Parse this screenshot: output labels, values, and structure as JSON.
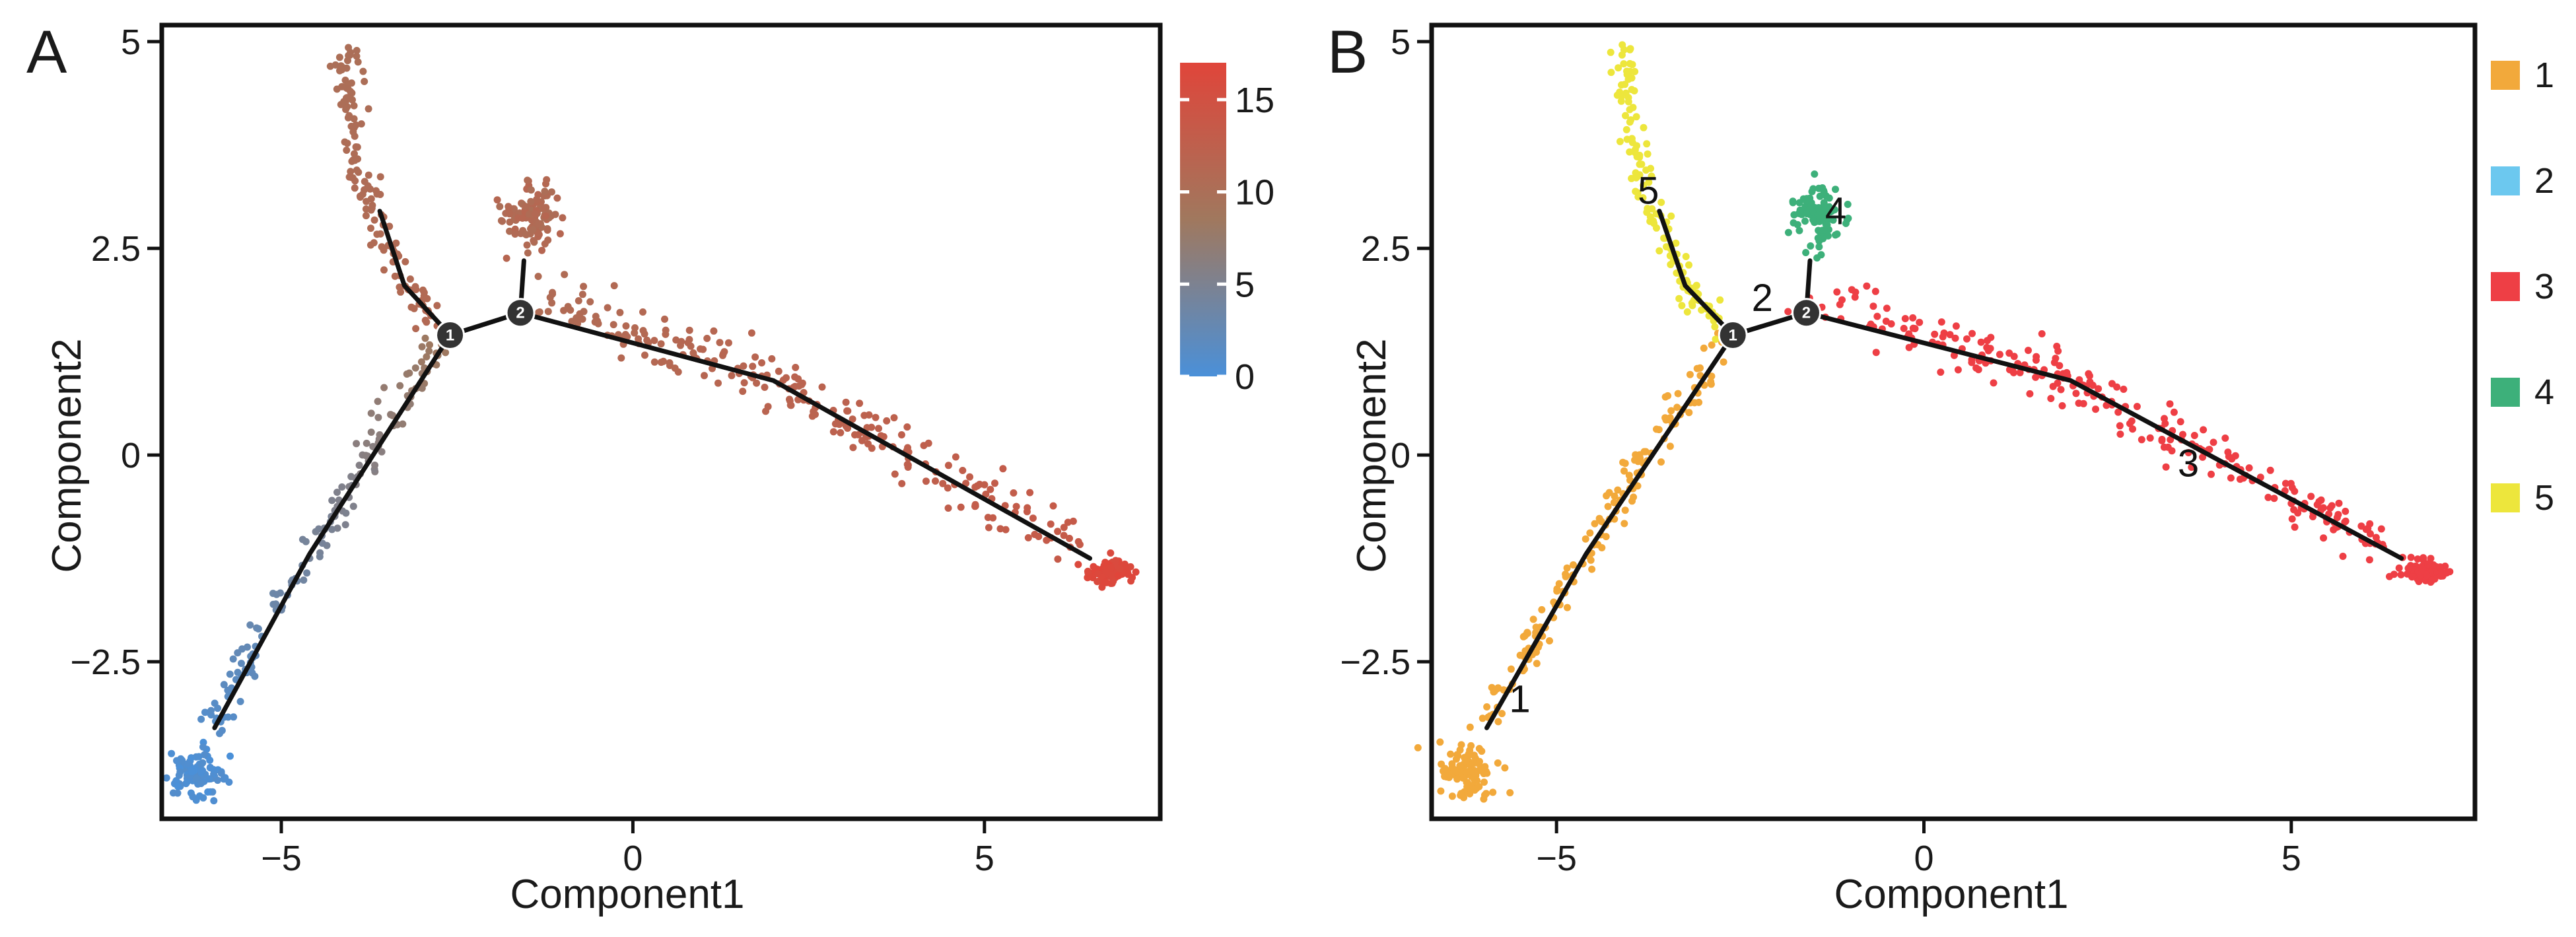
{
  "chart_data": [
    {
      "panel_label": "A",
      "type": "scatter",
      "color_mode": "pseudotime",
      "xlabel": "Component1",
      "ylabel": "Component2",
      "xlim": [
        -6.7,
        7.5
      ],
      "ylim": [
        -4.4,
        5.2
      ],
      "xticks": [
        -5,
        0,
        5
      ],
      "xtick_labels": [
        "−5",
        "0",
        "5"
      ],
      "yticks": [
        -2.5,
        0,
        2.5,
        5
      ],
      "ytick_labels": [
        "−2.5",
        "0",
        "2.5",
        "5"
      ],
      "colorbar": {
        "range": [
          0,
          17
        ],
        "ticks": [
          0,
          5,
          10,
          15
        ],
        "tick_labels": [
          "0",
          "5",
          "10",
          "15"
        ],
        "colors": [
          "#4A90D9",
          "#A0785E",
          "#E0453A"
        ]
      },
      "trajectory": {
        "branches": [
          [
            [
              -5.95,
              -3.3
            ],
            [
              -4.6,
              -1.2
            ],
            [
              -2.6,
              1.45
            ]
          ],
          [
            [
              -3.6,
              2.95
            ],
            [
              -3.25,
              2.05
            ],
            [
              -2.6,
              1.45
            ]
          ],
          [
            [
              -2.6,
              1.45
            ],
            [
              -1.6,
              1.72
            ]
          ],
          [
            [
              -1.55,
              2.35
            ],
            [
              -1.6,
              1.72
            ]
          ],
          [
            [
              -1.6,
              1.72
            ],
            [
              2.0,
              0.9
            ],
            [
              6.5,
              -1.25
            ]
          ]
        ],
        "nodes": [
          {
            "x": -2.6,
            "y": 1.45,
            "label": "1"
          },
          {
            "x": -1.6,
            "y": 1.72,
            "label": "2"
          }
        ]
      },
      "clusters": [
        {
          "name": "start",
          "x": -6.2,
          "y": -3.85,
          "sx": 0.2,
          "sy": 0.15,
          "n": 100,
          "t_range": [
            0,
            1
          ]
        },
        {
          "name": "left-arm",
          "path": [
            [
              -6.0,
              -3.3
            ],
            [
              -4.6,
              -1.2
            ],
            [
              -2.7,
              1.45
            ]
          ],
          "spread": 0.1,
          "n": 160,
          "t_range": [
            1,
            8.5
          ]
        },
        {
          "name": "upper-left",
          "path": [
            [
              -4.1,
              4.9
            ],
            [
              -3.9,
              3.4
            ],
            [
              -3.2,
              2.0
            ],
            [
              -2.7,
              1.55
            ]
          ],
          "spread": 0.1,
          "n": 140,
          "t_range": [
            10,
            11
          ]
        },
        {
          "name": "upper-middle",
          "x": -1.45,
          "y": 2.9,
          "sx": 0.18,
          "sy": 0.18,
          "n": 110,
          "t_range": [
            10,
            11.5
          ]
        },
        {
          "name": "right-arm",
          "path": [
            [
              -1.4,
              1.9
            ],
            [
              2.0,
              0.9
            ],
            [
              6.3,
              -1.1
            ]
          ],
          "spread": 0.15,
          "n": 240,
          "t_range": [
            10.5,
            13.5
          ]
        },
        {
          "name": "end",
          "x": 6.8,
          "y": -1.4,
          "sx": 0.15,
          "sy": 0.08,
          "n": 90,
          "t_range": [
            16,
            17
          ]
        }
      ]
    },
    {
      "panel_label": "B",
      "type": "scatter",
      "color_mode": "state",
      "xlabel": "Component1",
      "ylabel": "Component2",
      "xlim": [
        -6.7,
        7.5
      ],
      "ylim": [
        -4.4,
        5.2
      ],
      "xticks": [
        -5,
        0,
        5
      ],
      "xtick_labels": [
        "−5",
        "0",
        "5"
      ],
      "yticks": [
        -2.5,
        0,
        2.5,
        5
      ],
      "ytick_labels": [
        "−2.5",
        "0",
        "2.5",
        "5"
      ],
      "legend": [
        {
          "label": "1",
          "color": "#F2A93B"
        },
        {
          "label": "2",
          "color": "#6CC8EF"
        },
        {
          "label": "3",
          "color": "#EE3F45"
        },
        {
          "label": "4",
          "color": "#3DB07A"
        },
        {
          "label": "5",
          "color": "#EDE63C"
        }
      ],
      "branch_labels": [
        {
          "text": "1",
          "x": -5.5,
          "y": -2.95
        },
        {
          "text": "2",
          "x": -2.2,
          "y": 1.9
        },
        {
          "text": "3",
          "x": 3.6,
          "y": -0.1
        },
        {
          "text": "4",
          "x": -1.2,
          "y": 2.95
        },
        {
          "text": "5",
          "x": -3.75,
          "y": 3.2
        }
      ],
      "trajectory": {
        "branches": [
          [
            [
              -5.95,
              -3.3
            ],
            [
              -4.6,
              -1.2
            ],
            [
              -2.6,
              1.45
            ]
          ],
          [
            [
              -3.6,
              2.95
            ],
            [
              -3.25,
              2.05
            ],
            [
              -2.6,
              1.45
            ]
          ],
          [
            [
              -2.6,
              1.45
            ],
            [
              -1.6,
              1.72
            ]
          ],
          [
            [
              -1.55,
              2.35
            ],
            [
              -1.6,
              1.72
            ]
          ],
          [
            [
              -1.6,
              1.72
            ],
            [
              2.0,
              0.9
            ],
            [
              6.5,
              -1.25
            ]
          ]
        ],
        "nodes": [
          {
            "x": -2.6,
            "y": 1.45,
            "label": "1"
          },
          {
            "x": -1.6,
            "y": 1.72,
            "label": "2"
          }
        ]
      },
      "clusters": [
        {
          "name": "start",
          "x": -6.2,
          "y": -3.85,
          "sx": 0.2,
          "sy": 0.15,
          "n": 100,
          "state": 1
        },
        {
          "name": "left-arm",
          "path": [
            [
              -6.0,
              -3.3
            ],
            [
              -4.6,
              -1.2
            ],
            [
              -2.7,
              1.45
            ]
          ],
          "spread": 0.1,
          "n": 160,
          "state": 1
        },
        {
          "name": "upper-left",
          "path": [
            [
              -4.1,
              4.9
            ],
            [
              -3.9,
              3.4
            ],
            [
              -3.2,
              2.0
            ],
            [
              -2.7,
              1.55
            ]
          ],
          "spread": 0.1,
          "n": 140,
          "state": 5
        },
        {
          "name": "upper-middle",
          "x": -1.45,
          "y": 2.9,
          "sx": 0.18,
          "sy": 0.18,
          "n": 110,
          "state": 4
        },
        {
          "name": "right-arm",
          "path": [
            [
              -1.4,
              1.9
            ],
            [
              2.0,
              0.9
            ],
            [
              6.3,
              -1.1
            ]
          ],
          "spread": 0.15,
          "n": 240,
          "state": 3
        },
        {
          "name": "end",
          "x": 6.8,
          "y": -1.4,
          "sx": 0.15,
          "sy": 0.08,
          "n": 90,
          "state": 3
        }
      ]
    }
  ]
}
